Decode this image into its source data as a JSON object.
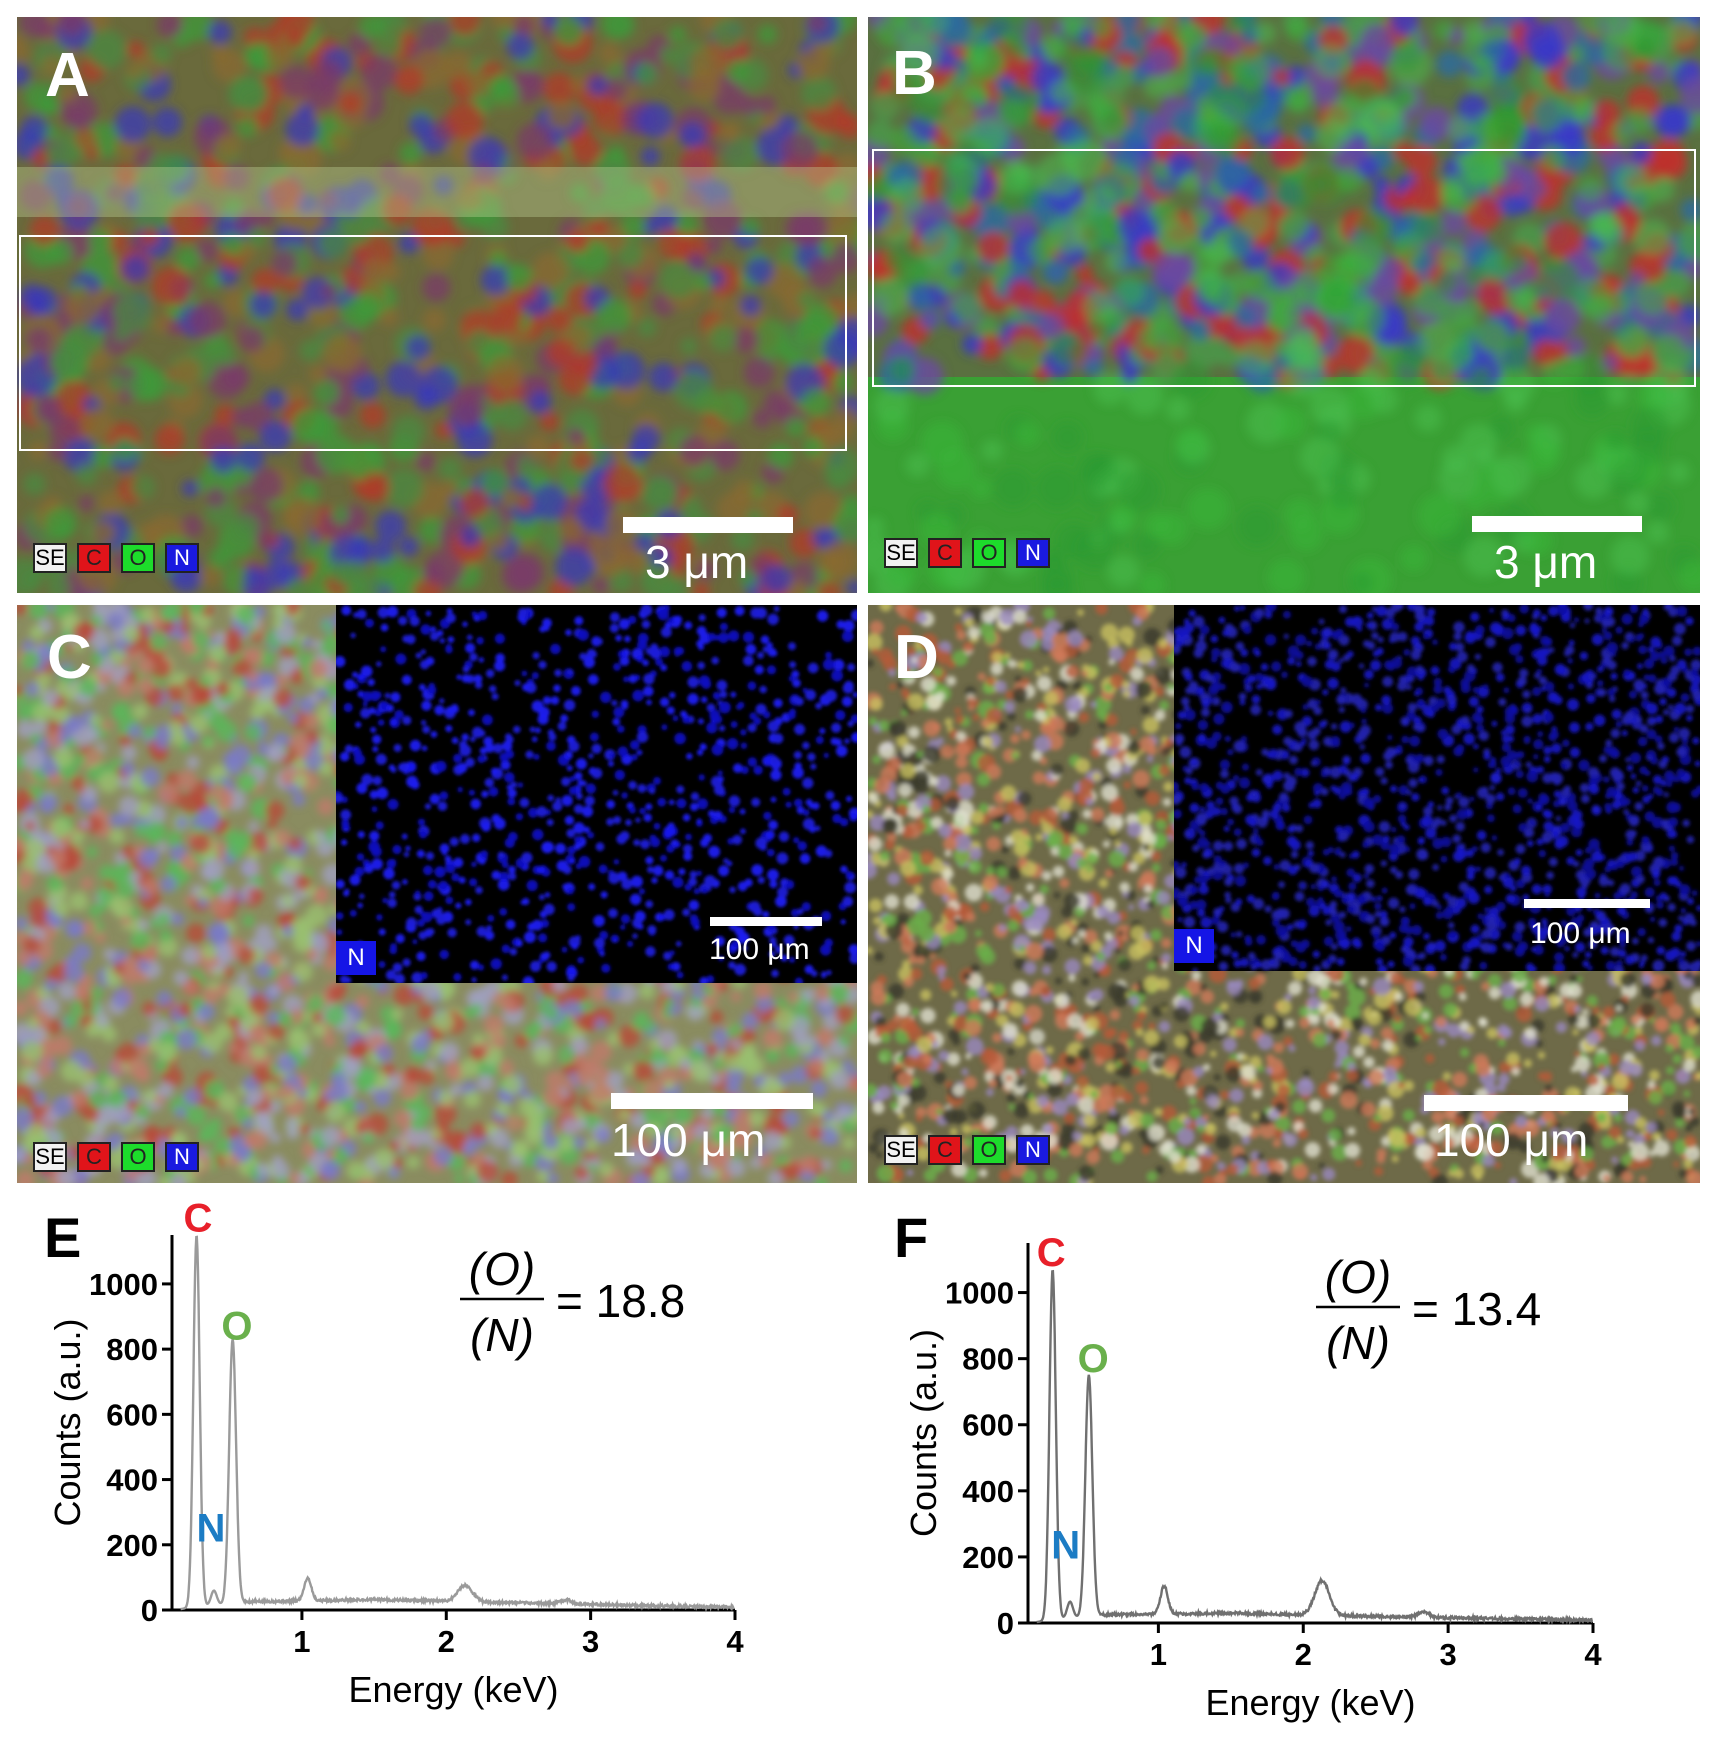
{
  "panels": {
    "A": {
      "label": "A",
      "scale": "3 μm",
      "legend": [
        "SE",
        "C",
        "O",
        "N"
      ]
    },
    "B": {
      "label": "B",
      "scale": "3 μm",
      "legend": [
        "SE",
        "C",
        "O",
        "N"
      ]
    },
    "C": {
      "label": "C",
      "scale": "100 μm",
      "legend": [
        "SE",
        "C",
        "O",
        "N"
      ],
      "inset_label": "N",
      "inset_scale": "100 μm"
    },
    "D": {
      "label": "D",
      "scale": "100 μm",
      "legend": [
        "SE",
        "C",
        "O",
        "N"
      ],
      "inset_label": "N",
      "inset_scale": "100 μm"
    }
  },
  "colors": {
    "C": "#e8202a",
    "O": "#6ab04c",
    "N": "#1c7cc4",
    "line": "#9a9a9a",
    "line_dark": "#707070"
  },
  "chart_data": [
    {
      "panel": "E",
      "label": "E",
      "type": "line",
      "xlabel": "Energy (keV)",
      "ylabel": "Counts (a.u.)",
      "xlim": [
        0.1,
        4
      ],
      "ylim": [
        0,
        1150
      ],
      "xticks": [
        1,
        2,
        3,
        4
      ],
      "yticks": [
        0,
        200,
        400,
        600,
        800,
        1000
      ],
      "ratio_text": {
        "num": "(O)",
        "den": "(N)",
        "value": "= 18.8"
      },
      "annotations": [
        {
          "text": "C",
          "x": 0.28,
          "y": 1160
        },
        {
          "text": "O",
          "x": 0.55,
          "y": 830
        },
        {
          "text": "N",
          "x": 0.37,
          "y": 210
        }
      ],
      "peaks": [
        {
          "x": 0.27,
          "h": 1140,
          "w": 0.022
        },
        {
          "x": 0.39,
          "h": 45,
          "w": 0.02
        },
        {
          "x": 0.52,
          "h": 810,
          "w": 0.024
        },
        {
          "x": 1.04,
          "h": 70,
          "w": 0.025
        },
        {
          "x": 2.13,
          "h": 50,
          "w": 0.05
        },
        {
          "x": 2.83,
          "h": 12,
          "w": 0.04
        }
      ],
      "baseline": [
        [
          0.1,
          0
        ],
        [
          0.6,
          25
        ],
        [
          1.5,
          32
        ],
        [
          2.5,
          22
        ],
        [
          4.0,
          8
        ]
      ]
    },
    {
      "panel": "F",
      "label": "F",
      "type": "line",
      "xlabel": "Energy (keV)",
      "ylabel": "Counts (a.u.)",
      "xlim": [
        0.1,
        4
      ],
      "ylim": [
        0,
        1150
      ],
      "xticks": [
        1,
        2,
        3,
        4
      ],
      "yticks": [
        0,
        200,
        400,
        600,
        800,
        1000
      ],
      "ratio_text": {
        "num": "(O)",
        "den": "(N)",
        "value": "= 13.4"
      },
      "annotations": [
        {
          "text": "C",
          "x": 0.26,
          "y": 1080
        },
        {
          "text": "O",
          "x": 0.55,
          "y": 760
        },
        {
          "text": "N",
          "x": 0.36,
          "y": 195
        }
      ],
      "peaks": [
        {
          "x": 0.27,
          "h": 1060,
          "w": 0.022
        },
        {
          "x": 0.39,
          "h": 50,
          "w": 0.02
        },
        {
          "x": 0.52,
          "h": 730,
          "w": 0.024
        },
        {
          "x": 1.04,
          "h": 85,
          "w": 0.025
        },
        {
          "x": 2.13,
          "h": 105,
          "w": 0.05
        },
        {
          "x": 2.83,
          "h": 15,
          "w": 0.04
        }
      ],
      "baseline": [
        [
          0.1,
          0
        ],
        [
          0.6,
          25
        ],
        [
          1.5,
          30
        ],
        [
          2.5,
          20
        ],
        [
          4.0,
          8
        ]
      ]
    }
  ]
}
